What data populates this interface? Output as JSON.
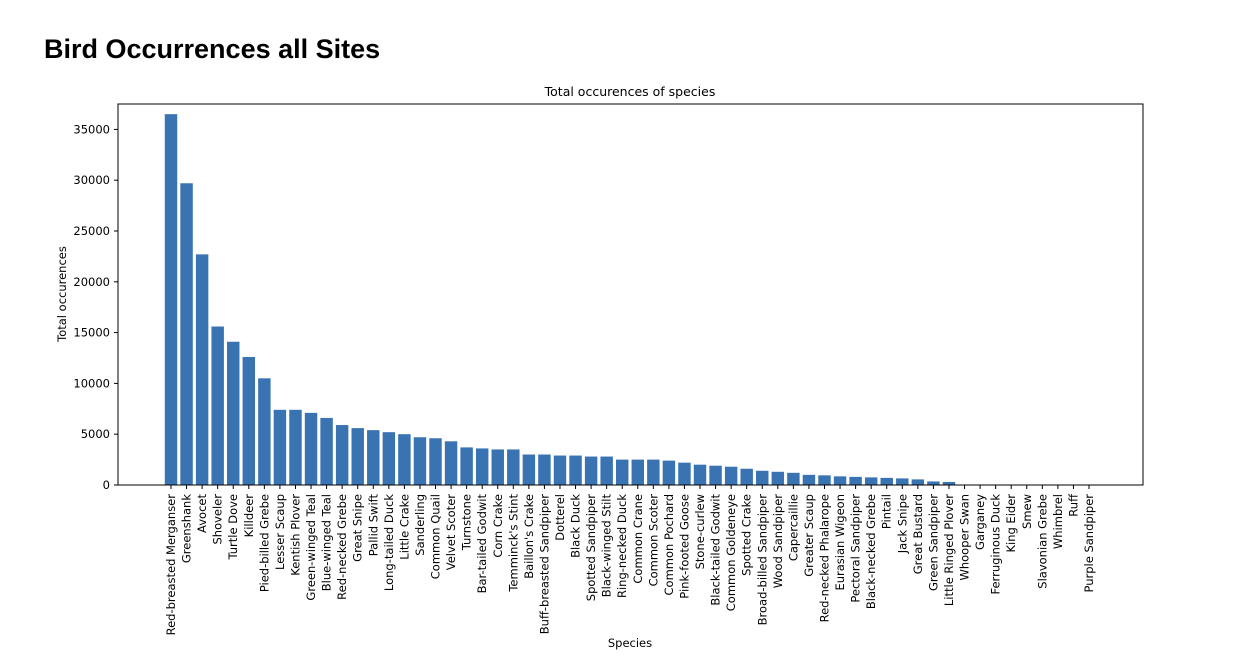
{
  "page": {
    "heading": "Bird Occurrences all Sites"
  },
  "chart_data": {
    "type": "bar",
    "title": "Total occurences of species",
    "xlabel": "Species",
    "ylabel": "Total occurences",
    "ylim": [
      0,
      37500
    ],
    "yticks": [
      0,
      5000,
      10000,
      15000,
      20000,
      25000,
      30000,
      35000
    ],
    "grid": false,
    "bar_color": "#3a73b2",
    "categories": [
      "Red-breasted Merganser",
      "Greenshank",
      "Avocet",
      "Shoveler",
      "Turtle Dove",
      "Killdeer",
      "Pied-billed Grebe",
      "Lesser Scaup",
      "Kentish Plover",
      "Green-winged Teal",
      "Blue-winged Teal",
      "Red-necked Grebe",
      "Great Snipe",
      "Pallid Swift",
      "Long-tailed Duck",
      "Little Crake",
      "Sanderling",
      "Common Quail",
      "Velvet Scoter",
      "Turnstone",
      "Bar-tailed Godwit",
      "Corn Crake",
      "Temminck's Stint",
      "Baillon's Crake",
      "Buff-breasted Sandpiper",
      "Dotterel",
      "Black Duck",
      "Spotted Sandpiper",
      "Black-winged Stilt",
      "Ring-necked Duck",
      "Common Crane",
      "Common Scoter",
      "Common Pochard",
      "Pink-footed Goose",
      "Stone-curlew",
      "Black-tailed Godwit",
      "Common Goldeneye",
      "Spotted Crake",
      "Broad-billed Sandpiper",
      "Wood Sandpiper",
      "Capercaillie",
      "Greater Scaup",
      "Red-necked Phalarope",
      "Eurasian Wigeon",
      "Pectoral Sandpiper",
      "Black-necked Grebe",
      "Pintail",
      "Jack Snipe",
      "Great Bustard",
      "Green Sandpiper",
      "Little Ringed Plover",
      "Whooper Swan",
      "Garganey",
      "Ferruginous Duck",
      "King Eider",
      "Smew",
      "Slavonian Grebe",
      "Whimbrel",
      "Ruff",
      "Purple Sandpiper"
    ],
    "values": [
      36500,
      29700,
      22700,
      15600,
      14100,
      12600,
      10500,
      7400,
      7400,
      7100,
      6600,
      5900,
      5600,
      5400,
      5200,
      5000,
      4700,
      4600,
      4300,
      3700,
      3600,
      3500,
      3500,
      3000,
      3000,
      2900,
      2900,
      2800,
      2800,
      2500,
      2500,
      2500,
      2400,
      2200,
      2000,
      1900,
      1800,
      1600,
      1400,
      1300,
      1200,
      1000,
      950,
      850,
      800,
      750,
      700,
      650,
      550,
      350,
      300,
      40,
      30,
      30,
      20,
      20,
      20,
      15,
      10,
      10
    ]
  }
}
